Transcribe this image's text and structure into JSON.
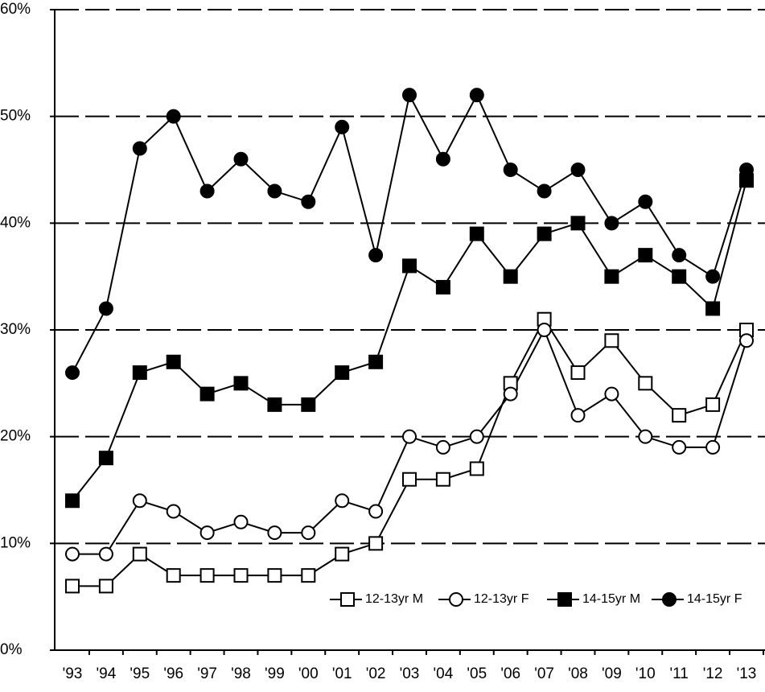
{
  "chart_data": {
    "type": "line",
    "categories": [
      "'93",
      "'94",
      "'95",
      "'96",
      "'97",
      "'98",
      "'99",
      "'00",
      "'01",
      "'02",
      "'03",
      "'04",
      "'05",
      "'06",
      "'07",
      "'08",
      "'09",
      "'10",
      "'11",
      "'12",
      "'13"
    ],
    "series": [
      {
        "name": "12-13yr M",
        "color": "#000000",
        "marker": "square",
        "fill": "#ffffff",
        "values": [
          6,
          6,
          9,
          7,
          7,
          7,
          7,
          7,
          9,
          10,
          16,
          16,
          17,
          25,
          31,
          26,
          29,
          25,
          22,
          23,
          30
        ]
      },
      {
        "name": "12-13yr F",
        "color": "#000000",
        "marker": "circle",
        "fill": "#ffffff",
        "values": [
          9,
          9,
          14,
          13,
          11,
          12,
          11,
          11,
          14,
          13,
          20,
          19,
          20,
          24,
          30,
          22,
          24,
          20,
          19,
          19,
          29
        ]
      },
      {
        "name": "14-15yr M",
        "color": "#000000",
        "marker": "square",
        "fill": "#000000",
        "values": [
          14,
          18,
          26,
          27,
          24,
          25,
          23,
          23,
          26,
          27,
          36,
          34,
          39,
          35,
          39,
          40,
          35,
          37,
          35,
          32,
          44
        ]
      },
      {
        "name": "14-15yr F",
        "color": "#000000",
        "marker": "circle",
        "fill": "#000000",
        "values": [
          26,
          32,
          47,
          50,
          43,
          46,
          43,
          42,
          49,
          37,
          52,
          46,
          52,
          45,
          43,
          45,
          40,
          42,
          37,
          35,
          45
        ]
      }
    ],
    "ylim": [
      0,
      60
    ],
    "yticks": [
      {
        "value": 0,
        "label": "0%"
      },
      {
        "value": 10,
        "label": "10%"
      },
      {
        "value": 20,
        "label": "20%"
      },
      {
        "value": 30,
        "label": "30%"
      },
      {
        "value": 40,
        "label": "40%"
      },
      {
        "value": 50,
        "label": "50%"
      },
      {
        "value": 60,
        "label": "60%"
      }
    ],
    "grid": true,
    "legend": "bottom-right"
  }
}
